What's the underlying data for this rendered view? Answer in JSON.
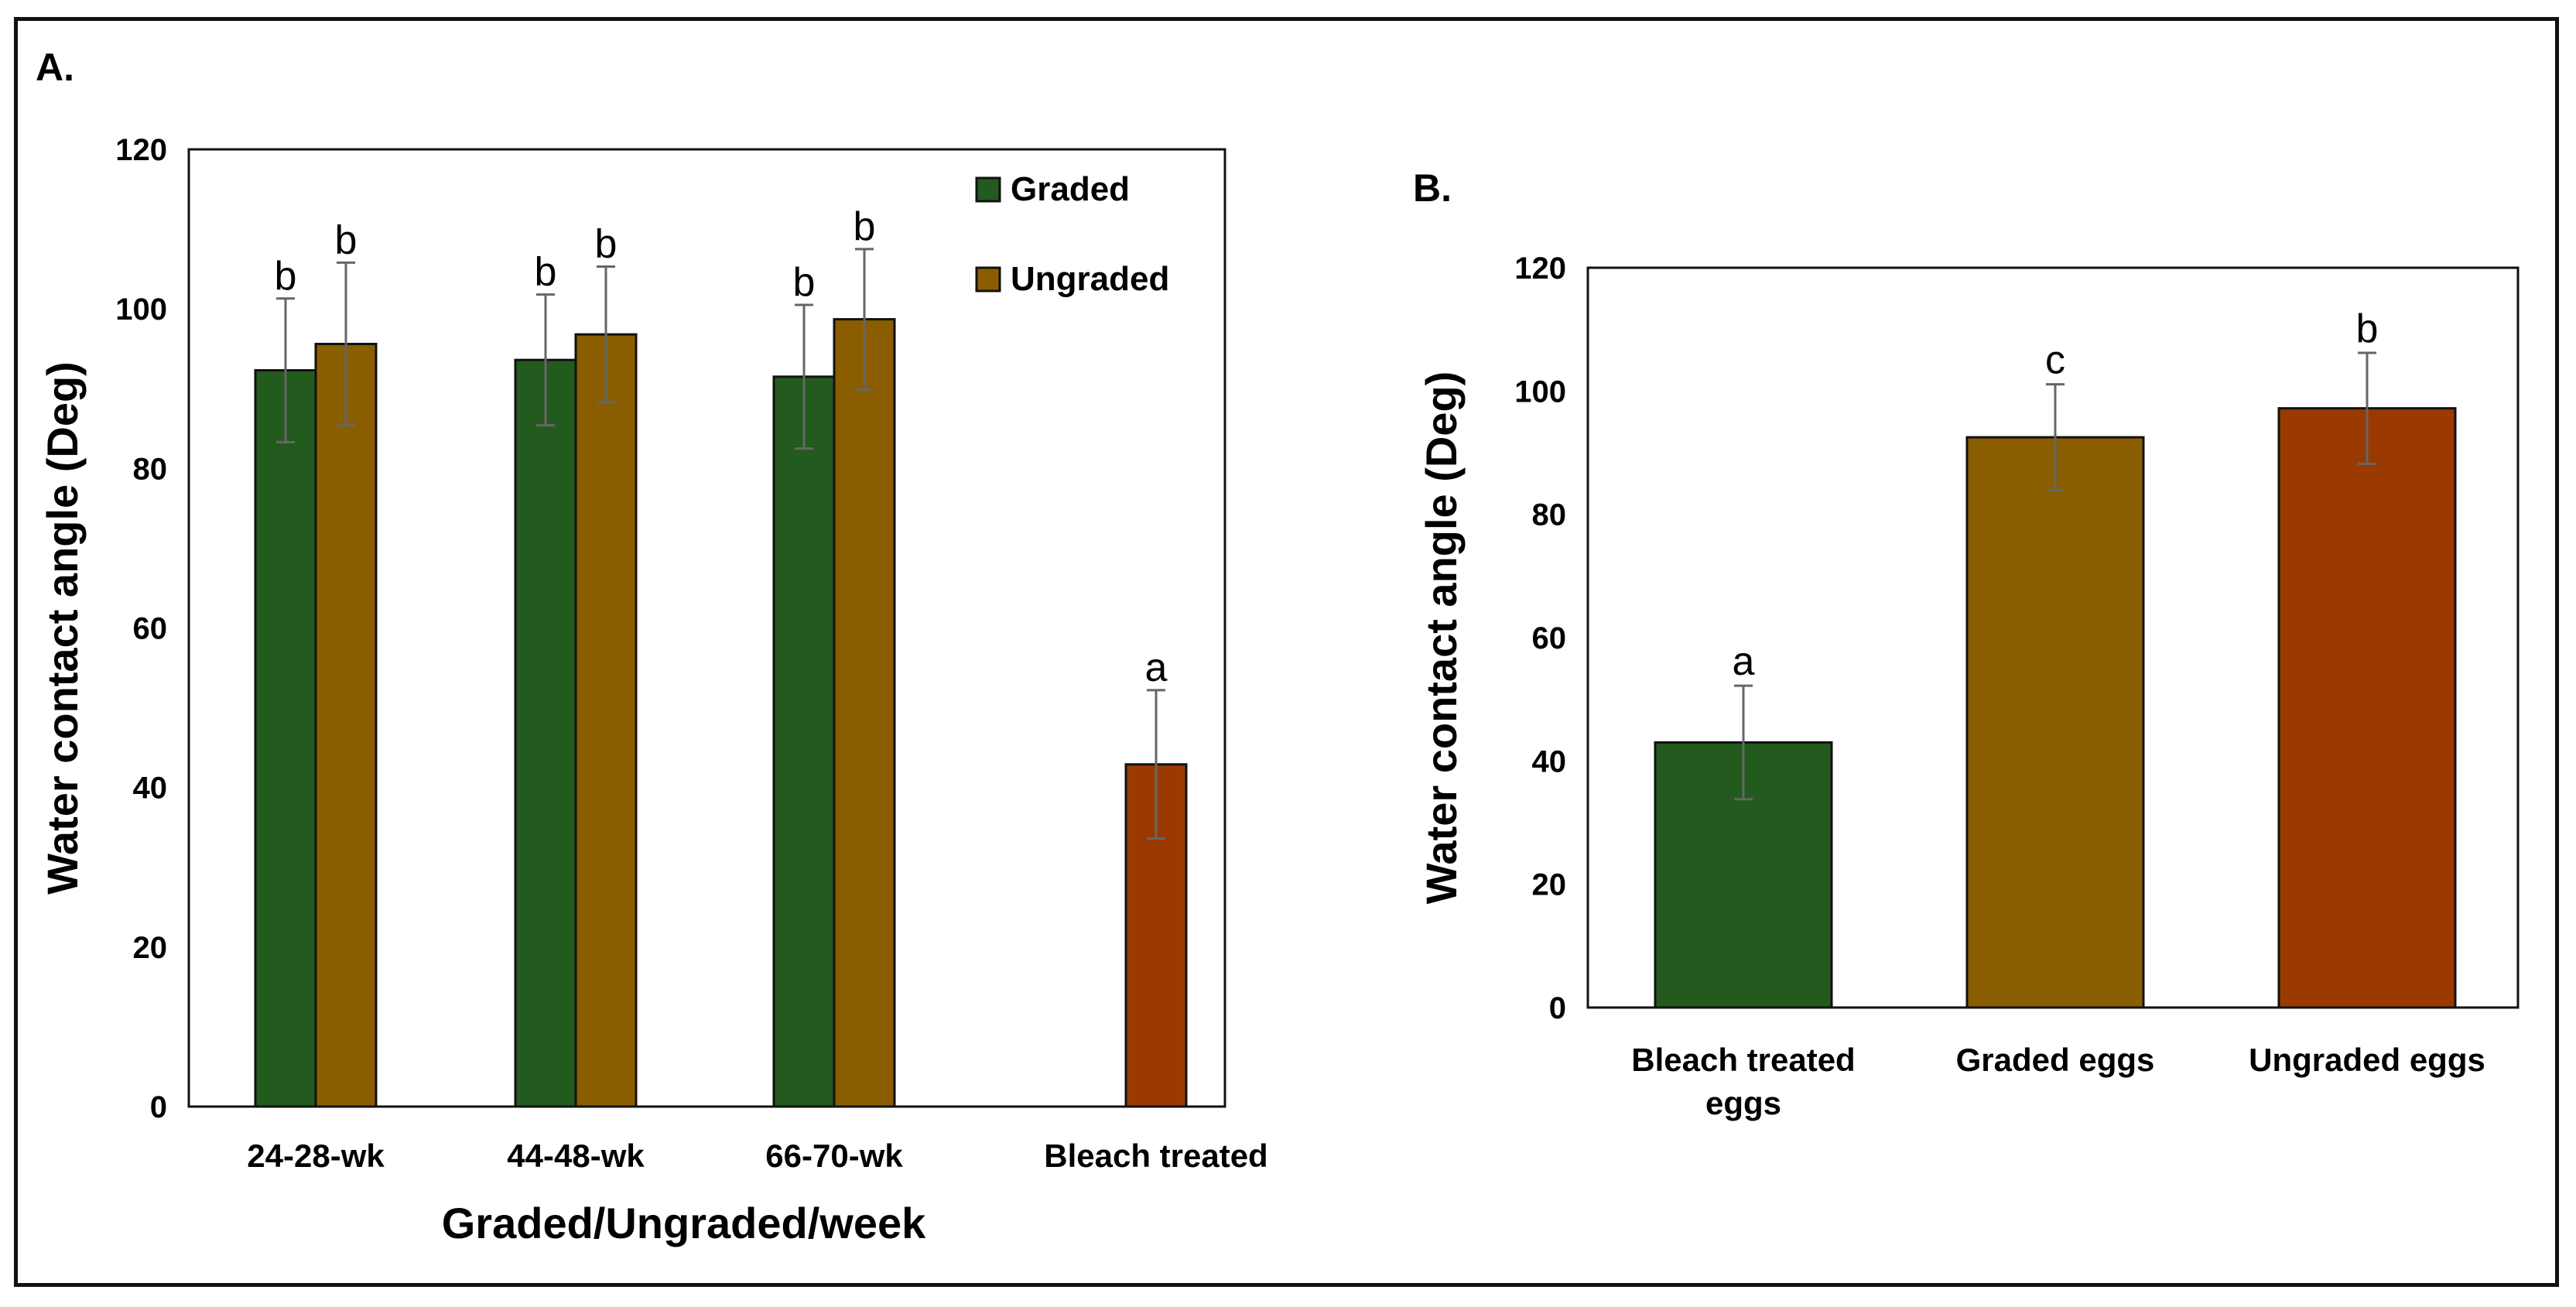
{
  "chart_data": [
    {
      "panel": "A.",
      "type": "bar",
      "categories": [
        "24-28-wk",
        "44-48-wk",
        "66-70-wk",
        "Bleach treated"
      ],
      "xlabel": "Graded/Ungraded/week",
      "ylabel": "Water contact angle (Deg)",
      "ylim": [
        0,
        120
      ],
      "yticks": [
        "0",
        "20",
        "40",
        "60",
        "80",
        "100",
        "120"
      ],
      "legend_position": "top-right",
      "series": [
        {
          "name": "Graded",
          "color": "#235A1E",
          "values": [
            92.3,
            93.6,
            91.5,
            null
          ],
          "errors": [
            9,
            8.2,
            9,
            null
          ],
          "labels": [
            "b",
            "b",
            "b",
            null
          ]
        },
        {
          "name": "Ungraded",
          "color": "#8A5E00",
          "values": [
            95.6,
            96.8,
            98.7,
            null
          ],
          "errors": [
            10.2,
            8.5,
            8.8,
            null
          ],
          "labels": [
            "b",
            "b",
            "b",
            null
          ]
        },
        {
          "name": "",
          "color": "#9A3A00",
          "values": [
            null,
            null,
            null,
            42.9
          ],
          "errors": [
            null,
            null,
            null,
            9.3
          ],
          "labels": [
            null,
            null,
            null,
            "a"
          ]
        }
      ]
    },
    {
      "panel": "B.",
      "type": "bar",
      "categories": [
        "Bleach treated eggs",
        "Graded eggs",
        "Ungraded eggs"
      ],
      "category_lines": [
        [
          "Bleach treated",
          "eggs"
        ],
        [
          "Graded eggs"
        ],
        [
          "Ungraded eggs"
        ]
      ],
      "ylabel": "Water contact angle (Deg)",
      "ylim": [
        0,
        120
      ],
      "yticks": [
        "0",
        "20",
        "40",
        "60",
        "80",
        "100",
        "120"
      ],
      "values": [
        43.0,
        92.5,
        97.2
      ],
      "errors": [
        9.2,
        8.6,
        9.0
      ],
      "labels": [
        "a",
        "c",
        "b"
      ],
      "colors": [
        "#235A1E",
        "#8A5E00",
        "#9A3A00"
      ]
    }
  ]
}
